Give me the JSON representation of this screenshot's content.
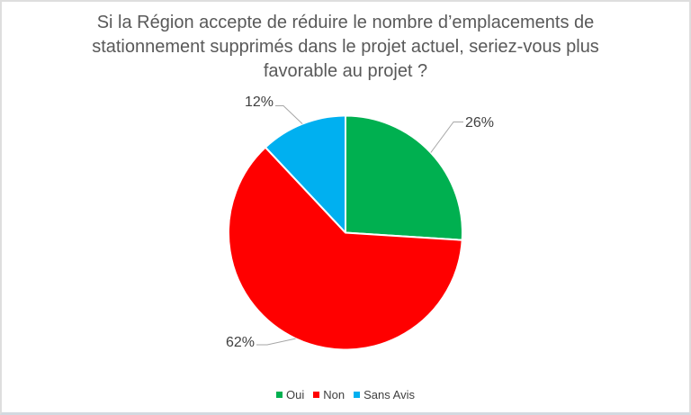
{
  "chart_data": {
    "type": "pie",
    "title": "Si la Région accepte de réduire le nombre d’emplacements de stationnement supprimés dans le projet actuel, seriez-vous plus favorable au projet ?",
    "title_lines": [
      "Si la Région accepte de réduire le nombre d’emplacements de",
      "stationnement supprimés dans le projet actuel, seriez-vous plus",
      "favorable au projet ?"
    ],
    "categories": [
      "Oui",
      "Non",
      "Sans Avis"
    ],
    "values": [
      26,
      62,
      12
    ],
    "labels": [
      "26%",
      "62%",
      "12%"
    ],
    "colors": [
      "#00B050",
      "#FF0000",
      "#00B0F0"
    ],
    "start_angle_deg": 0,
    "direction": "clockwise",
    "legend_position": "bottom",
    "grid": false,
    "title_color": "#595959",
    "label_color": "#404040",
    "leader_line_color": "#A6A6A6",
    "slice_border_color": "#FFFFFF",
    "background": "#FFFFFF"
  },
  "legend": {
    "items": [
      {
        "label": "Oui",
        "color": "#00B050"
      },
      {
        "label": "Non",
        "color": "#FF0000"
      },
      {
        "label": "Sans Avis",
        "color": "#00B0F0"
      }
    ]
  }
}
